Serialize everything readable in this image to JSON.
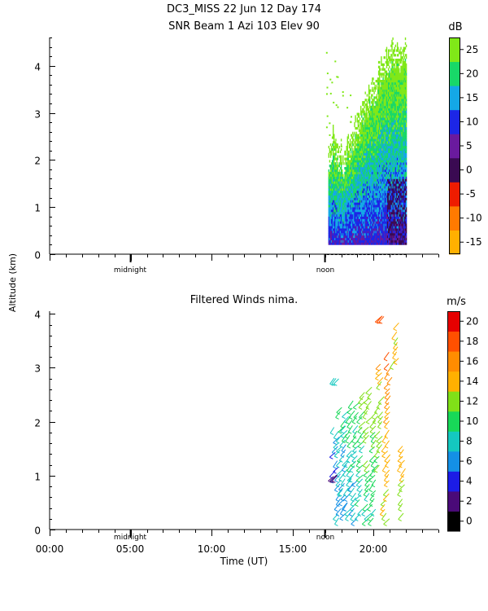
{
  "header": {
    "line1": "DC3_MISS  22 Jun 12 Day 174",
    "line2": "SNR Beam 1 Azi 103 Elev 90"
  },
  "shared": {
    "ylabel": "Altitude (km)",
    "xlabel": "Time (UT)",
    "x_ticks": [
      "00:00",
      "05:00",
      "10:00",
      "15:00",
      "20:00"
    ],
    "midnight_label": "midnight",
    "noon_label": "noon"
  },
  "chart_data": [
    {
      "type": "heatmap",
      "x_unit": "hours UT",
      "xlim": [
        0,
        24
      ],
      "ylim": [
        0,
        4.6
      ],
      "y_ticks": [
        0,
        1,
        2,
        3,
        4
      ],
      "colorbar": {
        "unit": "dB",
        "ticks": [
          "25",
          "20",
          "15",
          "10",
          "5",
          "0",
          "-5",
          "-10",
          "-15"
        ],
        "colors": [
          "#ffb000",
          "#ff7a00",
          "#ee1c00",
          "#3a0a52",
          "#6a1a9e",
          "#1c26e6",
          "#14a8e6",
          "#18d868",
          "#80e818"
        ],
        "vmin": -17.5,
        "vmax": 30
      },
      "data_hours": [
        17.0,
        22.0
      ],
      "data_altitude_km": [
        0.2,
        4.6
      ],
      "profiles": [
        {
          "hour": 17.2,
          "top_km": 2.3
        },
        {
          "hour": 17.5,
          "top_km": 2.8
        },
        {
          "hour": 17.8,
          "top_km": 2.5
        },
        {
          "hour": 18.1,
          "top_km": 2.4
        },
        {
          "hour": 18.4,
          "top_km": 2.6
        },
        {
          "hour": 18.7,
          "top_km": 2.9
        },
        {
          "hour": 19.0,
          "top_km": 3.1
        },
        {
          "hour": 19.3,
          "top_km": 3.3
        },
        {
          "hour": 19.6,
          "top_km": 3.6
        },
        {
          "hour": 19.9,
          "top_km": 3.8
        },
        {
          "hour": 20.2,
          "top_km": 4.0
        },
        {
          "hour": 20.5,
          "top_km": 4.3
        },
        {
          "hour": 20.8,
          "top_km": 4.5
        },
        {
          "hour": 21.1,
          "top_km": 4.6
        },
        {
          "hour": 21.4,
          "top_km": 4.6
        },
        {
          "hour": 21.7,
          "top_km": 4.6
        },
        {
          "hour": 22.0,
          "top_km": 4.6
        }
      ]
    },
    {
      "type": "scatter",
      "title": "Filtered Winds nima.",
      "x_unit": "hours UT",
      "xlim": [
        0,
        24
      ],
      "ylim": [
        0,
        4.05
      ],
      "y_ticks": [
        0,
        1,
        2,
        3,
        4
      ],
      "colorbar": {
        "unit": "m/s",
        "ticks": [
          "20",
          "18",
          "16",
          "14",
          "12",
          "10",
          "8",
          "6",
          "4",
          "2",
          "0"
        ],
        "colors": [
          "#000000",
          "#4a0a78",
          "#1c1ce6",
          "#1490e6",
          "#14c8c0",
          "#18d858",
          "#80e018",
          "#ffb000",
          "#ff8c00",
          "#ff5000",
          "#e60000"
        ],
        "vmin": 0,
        "vmax": 22
      },
      "columns": [
        {
          "hour": 17.3,
          "alt": [
            0.8,
            1.8
          ],
          "speed": 6
        },
        {
          "hour": 17.6,
          "alt": [
            0.1,
            2.2
          ],
          "speed": 7
        },
        {
          "hour": 17.9,
          "alt": [
            0.2,
            2.1
          ],
          "speed": 7
        },
        {
          "hour": 18.2,
          "alt": [
            0.1,
            2.3
          ],
          "speed": 8
        },
        {
          "hour": 18.5,
          "alt": [
            0.1,
            2.3
          ],
          "speed": 8
        },
        {
          "hour": 18.9,
          "alt": [
            0.1,
            2.5
          ],
          "speed": 9
        },
        {
          "hour": 19.3,
          "alt": [
            0.1,
            2.6
          ],
          "speed": 10
        },
        {
          "hour": 19.7,
          "alt": [
            0.1,
            2.2
          ],
          "speed": 10
        },
        {
          "hour": 20.0,
          "alt": [
            1.0,
            3.0
          ],
          "speed": 12
        },
        {
          "hour": 20.5,
          "alt": [
            0.1,
            3.2
          ],
          "speed": 13
        },
        {
          "hour": 20.9,
          "alt": [
            3.0,
            3.8
          ],
          "speed": 14
        },
        {
          "hour": 21.5,
          "alt": [
            0.1,
            1.5
          ],
          "speed": 13
        }
      ],
      "isolated": [
        {
          "hour": 17.2,
          "alt": 0.9,
          "speed": 3
        },
        {
          "hour": 20.1,
          "alt": 3.85,
          "speed": 19
        },
        {
          "hour": 17.3,
          "alt": 2.7,
          "speed": 9
        }
      ]
    }
  ]
}
